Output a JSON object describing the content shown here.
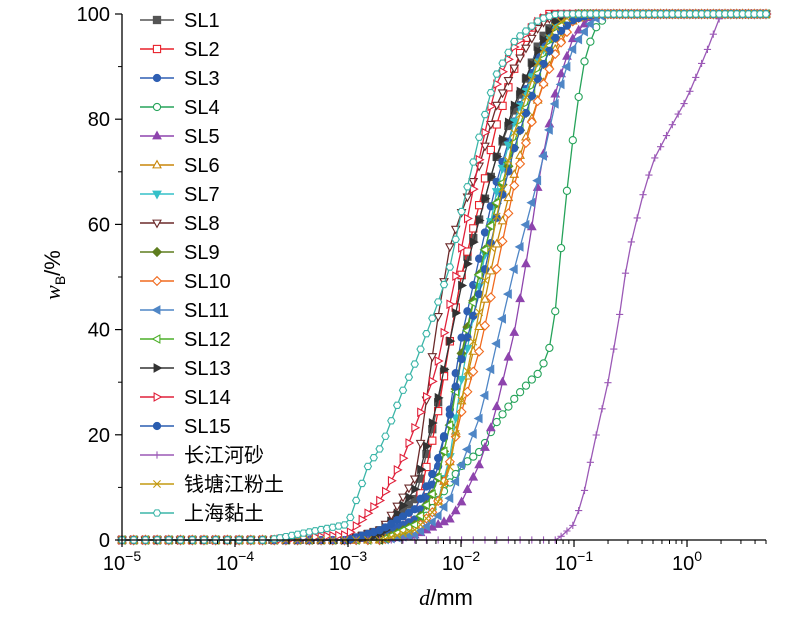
{
  "chart_data": {
    "type": "line",
    "xlabel_italic": "d",
    "xlabel_unit": "/mm",
    "ylabel_main": "w",
    "ylabel_sub": "B",
    "ylabel_unit": "/%",
    "xscale": "log",
    "xlim": [
      1e-05,
      5
    ],
    "ylim": [
      0,
      100
    ],
    "x_ticks": [
      {
        "base": "10",
        "exp": "−5",
        "value": 1e-05
      },
      {
        "base": "10",
        "exp": "−4",
        "value": 0.0001
      },
      {
        "base": "10",
        "exp": "−3",
        "value": 0.001
      },
      {
        "base": "10",
        "exp": "−2",
        "value": 0.01
      },
      {
        "base": "10",
        "exp": "−1",
        "value": 0.1
      },
      {
        "base": "10",
        "exp": "0",
        "value": 1
      }
    ],
    "y_ticks": [
      "0",
      "20",
      "40",
      "60",
      "80",
      "100"
    ],
    "legend_position": "top-left",
    "series": [
      {
        "name": "SL1",
        "color": "#555555",
        "marker": "square-filled",
        "points": [
          [
            1e-05,
            0
          ],
          [
            0.0002,
            0
          ],
          [
            0.001,
            0
          ],
          [
            0.002,
            2
          ],
          [
            0.004,
            8
          ],
          [
            0.006,
            24
          ],
          [
            0.008,
            38
          ],
          [
            0.01,
            50
          ],
          [
            0.015,
            62
          ],
          [
            0.02,
            72
          ],
          [
            0.03,
            82
          ],
          [
            0.05,
            95
          ],
          [
            0.07,
            99
          ],
          [
            0.1,
            100
          ],
          [
            5,
            100
          ]
        ]
      },
      {
        "name": "SL2",
        "color": "#e8202a",
        "marker": "square-open",
        "points": [
          [
            1e-05,
            0
          ],
          [
            0.0002,
            0
          ],
          [
            0.001,
            0
          ],
          [
            0.002,
            1
          ],
          [
            0.004,
            5
          ],
          [
            0.006,
            22
          ],
          [
            0.008,
            38
          ],
          [
            0.01,
            50
          ],
          [
            0.015,
            65
          ],
          [
            0.02,
            78
          ],
          [
            0.03,
            90
          ],
          [
            0.04,
            97
          ],
          [
            0.06,
            100
          ],
          [
            5,
            100
          ]
        ]
      },
      {
        "name": "SL3",
        "color": "#2f5fb3",
        "marker": "circle-filled",
        "points": [
          [
            1e-05,
            0
          ],
          [
            0.0002,
            0
          ],
          [
            0.001,
            0
          ],
          [
            0.002,
            1
          ],
          [
            0.004,
            4
          ],
          [
            0.006,
            12
          ],
          [
            0.008,
            25
          ],
          [
            0.01,
            38
          ],
          [
            0.015,
            55
          ],
          [
            0.02,
            67
          ],
          [
            0.03,
            80
          ],
          [
            0.05,
            93
          ],
          [
            0.07,
            98
          ],
          [
            0.1,
            100
          ],
          [
            5,
            100
          ]
        ]
      },
      {
        "name": "SL4",
        "color": "#26a35a",
        "marker": "circle-open",
        "points": [
          [
            1e-05,
            0
          ],
          [
            0.0002,
            0
          ],
          [
            0.001,
            0
          ],
          [
            0.002,
            0
          ],
          [
            0.004,
            2
          ],
          [
            0.006,
            7
          ],
          [
            0.008,
            11
          ],
          [
            0.01,
            14
          ],
          [
            0.015,
            17
          ],
          [
            0.02,
            22
          ],
          [
            0.03,
            27
          ],
          [
            0.04,
            30
          ],
          [
            0.05,
            32
          ],
          [
            0.06,
            36
          ],
          [
            0.07,
            45
          ],
          [
            0.08,
            60
          ],
          [
            0.1,
            78
          ],
          [
            0.12,
            90
          ],
          [
            0.15,
            97
          ],
          [
            0.2,
            100
          ],
          [
            5,
            100
          ]
        ]
      },
      {
        "name": "SL5",
        "color": "#8e44ad",
        "marker": "triangle-up-filled",
        "points": [
          [
            1e-05,
            0
          ],
          [
            0.0002,
            0
          ],
          [
            0.001,
            0
          ],
          [
            0.002,
            0
          ],
          [
            0.004,
            1
          ],
          [
            0.008,
            4
          ],
          [
            0.01,
            7
          ],
          [
            0.015,
            15
          ],
          [
            0.02,
            24
          ],
          [
            0.03,
            40
          ],
          [
            0.04,
            56
          ],
          [
            0.05,
            70
          ],
          [
            0.07,
            86
          ],
          [
            0.1,
            96
          ],
          [
            0.15,
            100
          ],
          [
            5,
            100
          ]
        ]
      },
      {
        "name": "SL6",
        "color": "#c8860a",
        "marker": "triangle-up-open",
        "points": [
          [
            1e-05,
            0
          ],
          [
            0.0002,
            0
          ],
          [
            0.001,
            0
          ],
          [
            0.002,
            0
          ],
          [
            0.004,
            2
          ],
          [
            0.006,
            6
          ],
          [
            0.008,
            15
          ],
          [
            0.01,
            26
          ],
          [
            0.015,
            42
          ],
          [
            0.02,
            55
          ],
          [
            0.03,
            70
          ],
          [
            0.05,
            85
          ],
          [
            0.07,
            94
          ],
          [
            0.1,
            99
          ],
          [
            0.15,
            100
          ],
          [
            5,
            100
          ]
        ]
      },
      {
        "name": "SL7",
        "color": "#35c0c8",
        "marker": "triangle-down-filled",
        "points": [
          [
            1e-05,
            0
          ],
          [
            0.0002,
            0
          ],
          [
            0.001,
            0
          ],
          [
            0.002,
            0
          ],
          [
            0.004,
            2
          ],
          [
            0.006,
            6
          ],
          [
            0.008,
            16
          ],
          [
            0.01,
            30
          ],
          [
            0.015,
            50
          ],
          [
            0.02,
            65
          ],
          [
            0.03,
            80
          ],
          [
            0.05,
            92
          ],
          [
            0.07,
            98
          ],
          [
            0.1,
            100
          ],
          [
            5,
            100
          ]
        ]
      },
      {
        "name": "SL8",
        "color": "#6b2a2a",
        "marker": "triangle-down-open",
        "points": [
          [
            1e-05,
            0
          ],
          [
            0.0002,
            0
          ],
          [
            0.001,
            0
          ],
          [
            0.002,
            2
          ],
          [
            0.004,
            12
          ],
          [
            0.006,
            40
          ],
          [
            0.008,
            56
          ],
          [
            0.01,
            62
          ],
          [
            0.015,
            72
          ],
          [
            0.02,
            82
          ],
          [
            0.03,
            90
          ],
          [
            0.05,
            98
          ],
          [
            0.07,
            100
          ],
          [
            5,
            100
          ]
        ]
      },
      {
        "name": "SL9",
        "color": "#5e7d1e",
        "marker": "diamond-filled",
        "points": [
          [
            1e-05,
            0
          ],
          [
            0.0002,
            0
          ],
          [
            0.001,
            0
          ],
          [
            0.002,
            0
          ],
          [
            0.004,
            3
          ],
          [
            0.006,
            10
          ],
          [
            0.008,
            22
          ],
          [
            0.01,
            35
          ],
          [
            0.015,
            52
          ],
          [
            0.02,
            63
          ],
          [
            0.03,
            75
          ],
          [
            0.05,
            89
          ],
          [
            0.07,
            96
          ],
          [
            0.1,
            100
          ],
          [
            5,
            100
          ]
        ]
      },
      {
        "name": "SL10",
        "color": "#f06a1e",
        "marker": "diamond-open",
        "points": [
          [
            1e-05,
            0
          ],
          [
            0.0002,
            0
          ],
          [
            0.001,
            0
          ],
          [
            0.002,
            0
          ],
          [
            0.004,
            2
          ],
          [
            0.006,
            6
          ],
          [
            0.008,
            15
          ],
          [
            0.01,
            24
          ],
          [
            0.015,
            37
          ],
          [
            0.02,
            50
          ],
          [
            0.03,
            68
          ],
          [
            0.05,
            85
          ],
          [
            0.07,
            93
          ],
          [
            0.1,
            99
          ],
          [
            0.15,
            100
          ],
          [
            5,
            100
          ]
        ]
      },
      {
        "name": "SL11",
        "color": "#4f86c6",
        "marker": "triangle-left-filled",
        "points": [
          [
            1e-05,
            0
          ],
          [
            0.0002,
            0
          ],
          [
            0.001,
            0
          ],
          [
            0.002,
            0
          ],
          [
            0.004,
            1
          ],
          [
            0.006,
            4
          ],
          [
            0.008,
            8
          ],
          [
            0.01,
            14
          ],
          [
            0.015,
            24
          ],
          [
            0.02,
            36
          ],
          [
            0.03,
            52
          ],
          [
            0.05,
            70
          ],
          [
            0.07,
            84
          ],
          [
            0.1,
            94
          ],
          [
            0.15,
            99
          ],
          [
            0.2,
            100
          ],
          [
            5,
            100
          ]
        ]
      },
      {
        "name": "SL12",
        "color": "#4caf28",
        "marker": "triangle-left-open",
        "points": [
          [
            1e-05,
            0
          ],
          [
            0.0002,
            0
          ],
          [
            0.001,
            0
          ],
          [
            0.002,
            0
          ],
          [
            0.004,
            3
          ],
          [
            0.006,
            10
          ],
          [
            0.008,
            22
          ],
          [
            0.01,
            34
          ],
          [
            0.015,
            52
          ],
          [
            0.02,
            63
          ],
          [
            0.03,
            76
          ],
          [
            0.05,
            90
          ],
          [
            0.07,
            97
          ],
          [
            0.1,
            100
          ],
          [
            5,
            100
          ]
        ]
      },
      {
        "name": "SL13",
        "color": "#333333",
        "marker": "triangle-right-filled",
        "points": [
          [
            1e-05,
            0
          ],
          [
            0.0002,
            0
          ],
          [
            0.001,
            0
          ],
          [
            0.002,
            1
          ],
          [
            0.004,
            10
          ],
          [
            0.006,
            25
          ],
          [
            0.008,
            38
          ],
          [
            0.01,
            48
          ],
          [
            0.015,
            62
          ],
          [
            0.02,
            72
          ],
          [
            0.03,
            83
          ],
          [
            0.05,
            94
          ],
          [
            0.07,
            99
          ],
          [
            0.1,
            100
          ],
          [
            5,
            100
          ]
        ]
      },
      {
        "name": "SL14",
        "color": "#e0203a",
        "marker": "triangle-right-open",
        "points": [
          [
            1e-05,
            0
          ],
          [
            0.0002,
            0
          ],
          [
            0.001,
            1
          ],
          [
            0.002,
            8
          ],
          [
            0.003,
            15
          ],
          [
            0.004,
            22
          ],
          [
            0.006,
            32
          ],
          [
            0.008,
            45
          ],
          [
            0.01,
            55
          ],
          [
            0.015,
            74
          ],
          [
            0.02,
            86
          ],
          [
            0.03,
            94
          ],
          [
            0.05,
            99
          ],
          [
            0.07,
            100
          ],
          [
            5,
            100
          ]
        ]
      },
      {
        "name": "SL15",
        "color": "#2a5db0",
        "marker": "circle-filled",
        "points": [
          [
            1e-05,
            0
          ],
          [
            0.0002,
            0
          ],
          [
            0.001,
            0
          ],
          [
            0.002,
            2
          ],
          [
            0.004,
            6
          ],
          [
            0.006,
            14
          ],
          [
            0.008,
            24
          ],
          [
            0.01,
            34
          ],
          [
            0.015,
            48
          ],
          [
            0.02,
            60
          ],
          [
            0.03,
            75
          ],
          [
            0.05,
            89
          ],
          [
            0.07,
            96
          ],
          [
            0.1,
            99
          ],
          [
            0.15,
            100
          ],
          [
            5,
            100
          ]
        ]
      },
      {
        "name": "长江河砂",
        "color": "#9b59b6",
        "marker": "plus",
        "points": [
          [
            1e-05,
            0
          ],
          [
            0.0002,
            0
          ],
          [
            0.001,
            0
          ],
          [
            0.01,
            0
          ],
          [
            0.05,
            0
          ],
          [
            0.07,
            0
          ],
          [
            0.08,
            1
          ],
          [
            0.1,
            3
          ],
          [
            0.12,
            8
          ],
          [
            0.15,
            18
          ],
          [
            0.2,
            30
          ],
          [
            0.25,
            42
          ],
          [
            0.3,
            54
          ],
          [
            0.4,
            65
          ],
          [
            0.5,
            72
          ],
          [
            0.7,
            78
          ],
          [
            1,
            84
          ],
          [
            1.5,
            93
          ],
          [
            2,
            100
          ],
          [
            5,
            100
          ]
        ]
      },
      {
        "name": "钱塘江粉土",
        "color": "#c49a10",
        "marker": "cross",
        "points": [
          [
            1e-05,
            0
          ],
          [
            0.0002,
            0
          ],
          [
            0.001,
            0
          ],
          [
            0.002,
            0
          ],
          [
            0.004,
            2
          ],
          [
            0.006,
            6
          ],
          [
            0.008,
            14
          ],
          [
            0.01,
            26
          ],
          [
            0.015,
            45
          ],
          [
            0.02,
            60
          ],
          [
            0.03,
            78
          ],
          [
            0.05,
            92
          ],
          [
            0.07,
            98
          ],
          [
            0.1,
            100
          ],
          [
            5,
            100
          ]
        ]
      },
      {
        "name": "上海黏土",
        "color": "#3bb5a8",
        "marker": "hexagon-open",
        "points": [
          [
            1e-05,
            0
          ],
          [
            0.0002,
            0
          ],
          [
            0.001,
            3
          ],
          [
            0.0015,
            14
          ],
          [
            0.002,
            18
          ],
          [
            0.003,
            28
          ],
          [
            0.004,
            34
          ],
          [
            0.006,
            44
          ],
          [
            0.008,
            52
          ],
          [
            0.01,
            62
          ],
          [
            0.015,
            78
          ],
          [
            0.02,
            88
          ],
          [
            0.03,
            95
          ],
          [
            0.05,
            99
          ],
          [
            0.07,
            100
          ],
          [
            5,
            100
          ]
        ]
      }
    ]
  }
}
